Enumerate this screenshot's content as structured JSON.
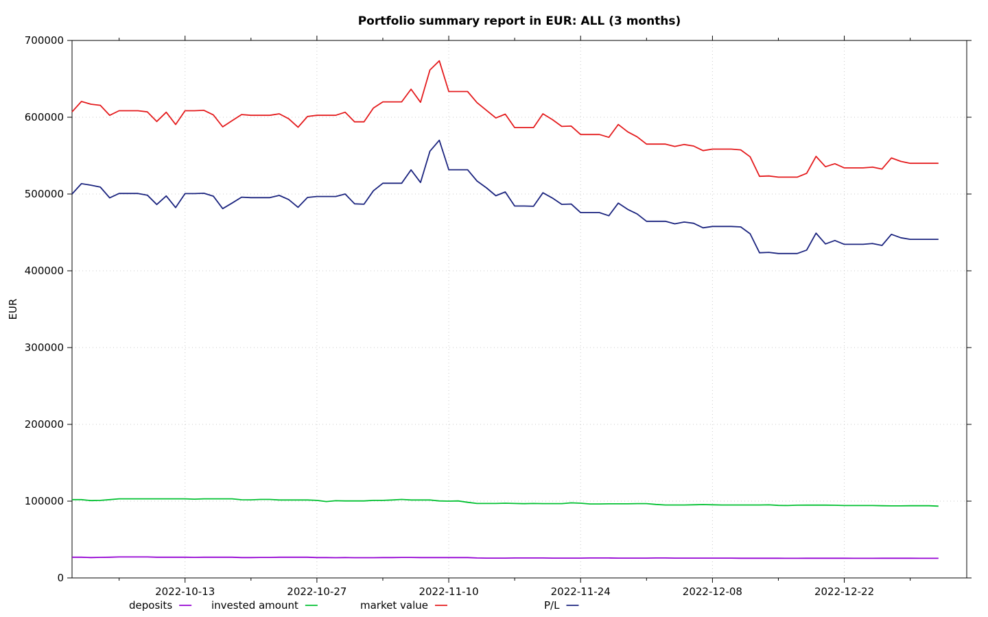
{
  "chart_data": {
    "type": "line",
    "title": "Portfolio summary report in EUR: ALL (3 months)",
    "xlabel": "",
    "ylabel": "EUR",
    "ylim": [
      0,
      700000
    ],
    "yticks": [
      0,
      100000,
      200000,
      300000,
      400000,
      500000,
      600000,
      700000
    ],
    "yticks_labels": [
      "0",
      "100000",
      "200000",
      "300000",
      "400000",
      "500000",
      "600000",
      "700000"
    ],
    "xlim": [
      "2022-10-01",
      "2023-01-04"
    ],
    "xticks": [
      "2022-10-13",
      "2022-10-27",
      "2022-11-10",
      "2022-11-24",
      "2022-12-08",
      "2022-12-22"
    ],
    "grid": true,
    "legend_position": "bottom",
    "x": [
      "2022-10-01",
      "2022-10-02",
      "2022-10-03",
      "2022-10-04",
      "2022-10-05",
      "2022-10-06",
      "2022-10-07",
      "2022-10-08",
      "2022-10-09",
      "2022-10-10",
      "2022-10-11",
      "2022-10-12",
      "2022-10-13",
      "2022-10-14",
      "2022-10-15",
      "2022-10-16",
      "2022-10-17",
      "2022-10-18",
      "2022-10-19",
      "2022-10-20",
      "2022-10-21",
      "2022-10-22",
      "2022-10-23",
      "2022-10-24",
      "2022-10-25",
      "2022-10-26",
      "2022-10-27",
      "2022-10-28",
      "2022-10-29",
      "2022-10-30",
      "2022-10-31",
      "2022-11-01",
      "2022-11-02",
      "2022-11-03",
      "2022-11-04",
      "2022-11-05",
      "2022-11-06",
      "2022-11-07",
      "2022-11-08",
      "2022-11-09",
      "2022-11-10",
      "2022-11-11",
      "2022-11-12",
      "2022-11-13",
      "2022-11-14",
      "2022-11-15",
      "2022-11-16",
      "2022-11-17",
      "2022-11-18",
      "2022-11-19",
      "2022-11-20",
      "2022-11-21",
      "2022-11-22",
      "2022-11-23",
      "2022-11-24",
      "2022-11-25",
      "2022-11-26",
      "2022-11-27",
      "2022-11-28",
      "2022-11-29",
      "2022-11-30",
      "2022-12-01",
      "2022-12-02",
      "2022-12-03",
      "2022-12-04",
      "2022-12-05",
      "2022-12-06",
      "2022-12-07",
      "2022-12-08",
      "2022-12-09",
      "2022-12-10",
      "2022-12-11",
      "2022-12-12",
      "2022-12-13",
      "2022-12-14",
      "2022-12-15",
      "2022-12-16",
      "2022-12-17",
      "2022-12-18",
      "2022-12-19",
      "2022-12-20",
      "2022-12-21",
      "2022-12-22",
      "2022-12-23",
      "2022-12-24",
      "2022-12-25",
      "2022-12-26",
      "2022-12-27",
      "2022-12-28",
      "2022-12-29",
      "2022-12-30",
      "2022-12-31",
      "2023-01-01"
    ],
    "series": [
      {
        "name": "deposits",
        "color": "#9400d3",
        "values": [
          27000,
          27000,
          26500,
          26800,
          27000,
          27300,
          27300,
          27300,
          27300,
          27000,
          27000,
          27000,
          27000,
          26800,
          27000,
          27000,
          27000,
          27000,
          26500,
          26500,
          26700,
          26700,
          27000,
          27000,
          27000,
          27000,
          26500,
          26500,
          26300,
          26500,
          26300,
          26300,
          26300,
          26500,
          26500,
          26700,
          26700,
          26500,
          26500,
          26500,
          26500,
          26500,
          26500,
          26000,
          25800,
          25800,
          25800,
          26000,
          26000,
          26000,
          26000,
          25800,
          25800,
          25800,
          25800,
          26000,
          26000,
          26000,
          25800,
          25800,
          25800,
          25800,
          26000,
          26000,
          25800,
          25800,
          25800,
          25800,
          25800,
          25800,
          25800,
          25600,
          25600,
          25600,
          25600,
          25600,
          25500,
          25500,
          25600,
          25600,
          25600,
          25600,
          25600,
          25500,
          25500,
          25500,
          25600,
          25600,
          25600,
          25600,
          25500,
          25500,
          25500
        ]
      },
      {
        "name": "invested amount",
        "color": "#00c030",
        "values": [
          102000,
          102000,
          100700,
          101000,
          102000,
          103000,
          103000,
          103000,
          103000,
          103000,
          103000,
          103000,
          103000,
          102600,
          103000,
          103000,
          103000,
          103000,
          101800,
          101700,
          102200,
          102200,
          101500,
          101500,
          101500,
          101500,
          101000,
          99500,
          100500,
          100300,
          100300,
          100300,
          101000,
          101000,
          101500,
          102200,
          101500,
          101500,
          101500,
          100300,
          100000,
          100300,
          98500,
          97000,
          97000,
          97000,
          97300,
          97000,
          96700,
          97000,
          96800,
          96800,
          96800,
          97800,
          97300,
          96300,
          96300,
          96500,
          96500,
          96500,
          96800,
          96800,
          95700,
          95000,
          95000,
          95000,
          95300,
          95500,
          95300,
          95000,
          95000,
          95000,
          95000,
          95000,
          95200,
          94500,
          94300,
          94700,
          94800,
          94800,
          94800,
          94600,
          94300,
          94300,
          94300,
          94300,
          94000,
          93800,
          93800,
          94000,
          94000,
          94000,
          93500
        ]
      },
      {
        "name": "market value",
        "color": "#e41a1c",
        "values": [
          607000,
          620500,
          617000,
          615500,
          602500,
          608500,
          608500,
          608500,
          607000,
          594500,
          606500,
          590500,
          608500,
          608500,
          609000,
          603000,
          587500,
          595500,
          603500,
          602500,
          602500,
          602500,
          604500,
          598000,
          587000,
          601000,
          602500,
          602500,
          602500,
          606500,
          594000,
          594000,
          612000,
          620000,
          620000,
          620000,
          636500,
          619500,
          661500,
          673500,
          633500,
          633500,
          633500,
          619000,
          609000,
          599000,
          604000,
          586500,
          586500,
          586500,
          604500,
          597000,
          588000,
          588500,
          577500,
          577500,
          577500,
          573800,
          590500,
          581000,
          574500,
          565000,
          565000,
          565000,
          562000,
          564500,
          562500,
          556500,
          558500,
          558500,
          558500,
          557500,
          548500,
          523000,
          523500,
          522000,
          522000,
          522000,
          527000,
          549000,
          535500,
          539500,
          534000,
          534000,
          534000,
          535000,
          532500,
          547000,
          542500,
          540000,
          540000,
          540000,
          540000
        ]
      },
      {
        "name": "P/L",
        "color": "#1a237e",
        "values": [
          500000,
          513500,
          511500,
          509000,
          495000,
          500700,
          500700,
          500700,
          498500,
          486300,
          497500,
          482300,
          500500,
          500500,
          501000,
          497200,
          481000,
          488200,
          495900,
          495300,
          495300,
          495300,
          498200,
          492800,
          482700,
          495500,
          496800,
          496800,
          496800,
          500000,
          487200,
          486700,
          504200,
          514000,
          514000,
          514000,
          531400,
          515000,
          555700,
          570000,
          531600,
          531600,
          531600,
          517000,
          508000,
          497800,
          502700,
          484400,
          484400,
          484000,
          501600,
          494800,
          486500,
          487000,
          475800,
          475800,
          475800,
          471700,
          488100,
          480000,
          474000,
          464500,
          464500,
          464500,
          461200,
          463500,
          461900,
          456000,
          457800,
          457800,
          457800,
          457100,
          448200,
          423500,
          424000,
          422500,
          422500,
          422500,
          427000,
          449000,
          435000,
          439500,
          434500,
          434500,
          434500,
          435500,
          433000,
          447500,
          443000,
          441000,
          441000,
          441000,
          441000
        ]
      }
    ]
  }
}
